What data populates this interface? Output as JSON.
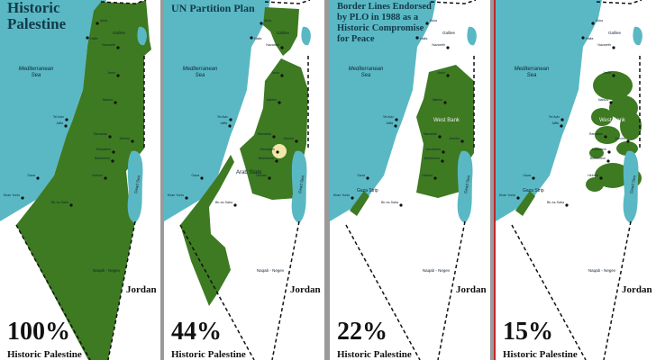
{
  "colors": {
    "sea": "#5ab8c4",
    "land": "#3d7a22",
    "jerusalem_zone": "#f2e6a8",
    "border_red": "#c0282d"
  },
  "panels": [
    {
      "title": "Historic Palestine",
      "percent": "100%",
      "subtitle": "Historic Palestine",
      "regions": []
    },
    {
      "title": "UN Partition Plan",
      "percent": "44%",
      "subtitle": "Historic Palestine",
      "regions": [
        "Arab State"
      ]
    },
    {
      "title": "Border Lines Endorsed by PLO in 1988 as a Historic Compromise for Peace",
      "percent": "22%",
      "subtitle": "Historic Palestine",
      "regions": [
        "West Bank",
        "Gaza Strip"
      ]
    },
    {
      "title": "",
      "percent": "15%",
      "subtitle": "Historic Palestine",
      "regions": [
        "West Bank",
        "Gaza Strip"
      ]
    }
  ],
  "labels": {
    "sea": "Mediterranean",
    "sea2": "Sea",
    "dead_sea": "Dead Sea",
    "galilee": "Galilee",
    "negev": "Naqab - Negev",
    "jordan": "Jordan"
  },
  "cities": [
    "Akka",
    "Haifa",
    "Nazareth",
    "Jenin",
    "Nablus",
    "Tel Aviv",
    "Jaffa",
    "Ramallah",
    "Jericho",
    "Jerusalem",
    "Bethlehem",
    "Hebron",
    "Gaza",
    "Khan Yunis",
    "Bir-es-Saba"
  ]
}
